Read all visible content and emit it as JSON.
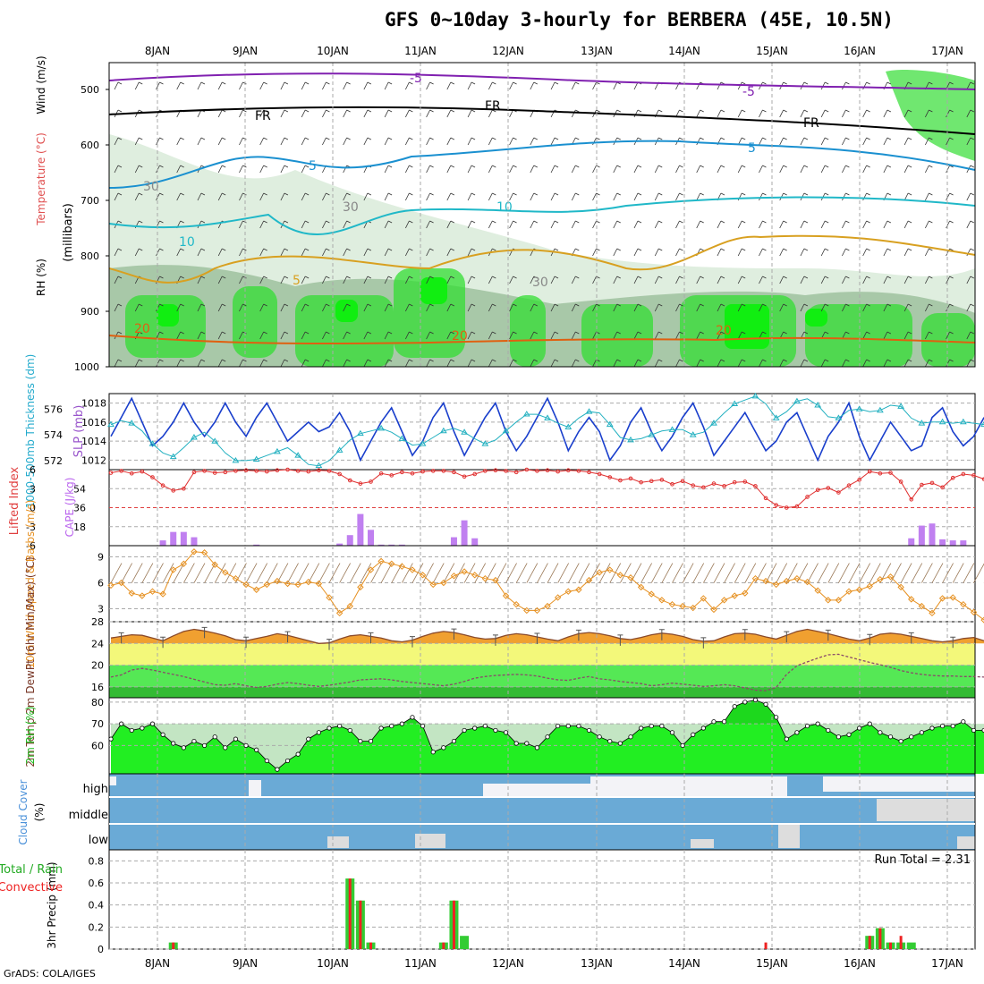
{
  "title": "GFS 0~10day 3-hourly for BERBERA (45E, 10.5N)",
  "credit": "GrADS: COLA/IGES",
  "dates": [
    "8JAN",
    "9JAN",
    "10JAN",
    "11JAN",
    "12JAN",
    "13JAN",
    "14JAN",
    "15JAN",
    "16JAN",
    "17JAN"
  ],
  "colors": {
    "rh_green": "#33dd33",
    "rh_light": "#dfeedf",
    "rh_mid": "#a8c8a8",
    "slp_line": "#1a3fcc",
    "thickness_line": "#22b0c0",
    "cape_bar": "#c080f0",
    "lifted_line": "#e03030",
    "wind_speed": "#e69020",
    "temp_fill": "#f0a030",
    "temp_line": "#8a4a2a",
    "dewpt_band_yellow": "#f3f87a",
    "dewpt_green": "#55e855",
    "cloud_blue": "#6aaad6",
    "precip_green": "#33cc33",
    "precip_red": "#ee2222"
  },
  "chart_data": [
    {
      "type": "contour",
      "panel": "sounding",
      "ylabel_parts": [
        "RH (%)",
        "Temperature (°C)",
        "Wind (m/s)"
      ],
      "yunit": "(millibars)",
      "yticks": [
        500,
        600,
        700,
        800,
        900,
        1000
      ],
      "contour_labels": [
        "-5",
        "-5",
        "FR",
        "FR",
        "FR",
        "5",
        "5",
        "10",
        "10",
        "5",
        "20",
        "20",
        "20",
        "30",
        "30",
        "30"
      ]
    },
    {
      "type": "line",
      "panel": "slp_thickness",
      "ylabel_left": "1000-500mb Thickness (dm)",
      "ylabel_right": "SLP (mb)",
      "yticks_left": [
        572,
        574,
        576
      ],
      "yticks_right": [
        1012,
        1014,
        1016,
        1018
      ],
      "series": [
        {
          "name": "SLP (mb)",
          "values": [
            1014.5,
            1016.5,
            1018.5,
            1016,
            1013.5,
            1014.5,
            1016,
            1018,
            1016,
            1014.5,
            1016,
            1018,
            1016,
            1014.5,
            1016.5,
            1018,
            1016,
            1014,
            1015,
            1016,
            1015,
            1015.5,
            1017,
            1015,
            1012,
            1014,
            1016,
            1017.5,
            1015,
            1012.5,
            1014,
            1016.5,
            1018,
            1015,
            1012.5,
            1014.5,
            1016.5,
            1018,
            1015,
            1013,
            1014.5,
            1016.5,
            1018.5,
            1016,
            1013,
            1015,
            1016.5,
            1015,
            1012,
            1013.5,
            1016,
            1017.5,
            1015,
            1013,
            1014.5,
            1016.5,
            1018,
            1015.5,
            1012.5,
            1014,
            1015.5,
            1017,
            1015,
            1013,
            1014,
            1016,
            1017,
            1014.5,
            1012,
            1014.5,
            1016,
            1018,
            1014.5,
            1012,
            1014,
            1016,
            1014.5,
            1013,
            1013.5,
            1016.5,
            1017.5,
            1015,
            1013.5,
            1014.5,
            1016.5
          ]
        },
        {
          "name": "1000-500mb Thickness (dm)",
          "values": [
            574.8,
            575.1,
            574.9,
            574.3,
            573.3,
            572.6,
            572.3,
            573,
            573.8,
            574.2,
            573.5,
            572.6,
            572,
            572,
            572.1,
            572.4,
            572.7,
            573,
            572.4,
            571.7,
            571.6,
            572,
            572.8,
            573.6,
            574.1,
            574.3,
            574.5,
            574.2,
            573.7,
            573.2,
            573.3,
            573.8,
            574.3,
            574.5,
            574.2,
            573.7,
            573.3,
            573.6,
            574.3,
            575,
            575.6,
            575.6,
            575.3,
            574.9,
            574.6,
            575.3,
            575.8,
            575.7,
            574.8,
            573.8,
            573.6,
            573.7,
            574,
            574.3,
            574.4,
            574.4,
            574,
            574.2,
            574.9,
            575.7,
            576.4,
            576.7,
            577,
            576.4,
            575.3,
            575.8,
            576.6,
            576.8,
            576.3,
            575.4,
            575.3,
            575.9,
            576,
            575.8,
            575.9,
            576.3,
            576.2,
            575.3,
            574.9,
            575,
            575,
            574.9,
            575,
            574.9,
            574.8
          ]
        }
      ]
    },
    {
      "type": "bar+line",
      "panel": "cape_lifted_index",
      "ylabel_left": "Lifted Index",
      "ylabel_right": "CAPE (J/kg)",
      "yticks_left": [
        "6",
        "3",
        "0",
        "-3",
        "-6"
      ],
      "yticks_right": [
        18,
        36,
        54
      ],
      "series": [
        {
          "name": "CAPE (J/kg)",
          "values": [
            0,
            0,
            0,
            0,
            0,
            5,
            13,
            13,
            8,
            0,
            0,
            0,
            0,
            0,
            1,
            0,
            0,
            0,
            0,
            0,
            0,
            0,
            2,
            10,
            30,
            15,
            1,
            1,
            1,
            0,
            0,
            0,
            0,
            8,
            24,
            7,
            0,
            0,
            0,
            0,
            0,
            0,
            0,
            0,
            0,
            0,
            0,
            0,
            0,
            0,
            0,
            0,
            0,
            0,
            0,
            0,
            0,
            0,
            0,
            0,
            0,
            0,
            0,
            0,
            0,
            0,
            0,
            0,
            0,
            0,
            0,
            0,
            0,
            0,
            0,
            0,
            0,
            7,
            19,
            21,
            6,
            5,
            5,
            0,
            0
          ]
        },
        {
          "name": "Lifted Index",
          "values": [
            5.5,
            5.8,
            5.4,
            5.7,
            4.8,
            3.5,
            2.7,
            3,
            5.6,
            5.8,
            5.5,
            5.6,
            5.8,
            5.9,
            5.8,
            5.7,
            5.9,
            6,
            5.8,
            5.7,
            5.9,
            5.8,
            5.3,
            4.3,
            3.8,
            4.1,
            5.4,
            5.1,
            5.6,
            5.4,
            5.7,
            5.8,
            5.8,
            5.6,
            4.9,
            5.3,
            5.8,
            5.9,
            5.8,
            5.6,
            6,
            5.8,
            5.9,
            5.7,
            5.9,
            5.8,
            5.6,
            5.3,
            4.8,
            4.3,
            4.6,
            4,
            4.2,
            4.4,
            3.7,
            4.2,
            3.5,
            3.2,
            3.8,
            3.4,
            4,
            4.1,
            3.4,
            1.5,
            0.4,
            0,
            0.2,
            1.7,
            2.8,
            3.1,
            2.4,
            3.5,
            4.4,
            5.7,
            5.4,
            5.5,
            4.1,
            1.3,
            3.6,
            3.9,
            3.2,
            4.7,
            5.3,
            5.1,
            4.5
          ]
        }
      ]
    },
    {
      "type": "line",
      "panel": "wind10m",
      "ylabel": "10m Wind Speed & Barbs (m/s)",
      "yticks": [
        3,
        6,
        9
      ],
      "series": [
        {
          "name": "10m Wind Speed",
          "values": [
            5.7,
            6,
            4.8,
            4.5,
            5,
            4.7,
            7.5,
            8.2,
            9.6,
            9.5,
            8.1,
            7.2,
            6.5,
            5.8,
            5.2,
            5.8,
            6.2,
            5.9,
            5.8,
            6.1,
            5.9,
            4.3,
            2.5,
            3.3,
            5.5,
            7.5,
            8.5,
            8.2,
            7.9,
            7.5,
            6.9,
            5.8,
            6,
            6.8,
            7.3,
            6.9,
            6.5,
            6.3,
            4.5,
            3.5,
            2.8,
            2.8,
            3.3,
            4.3,
            5,
            5.2,
            6.3,
            7.2,
            7.5,
            6.9,
            6.6,
            5.5,
            4.7,
            4,
            3.5,
            3.3,
            3.1,
            4.2,
            2.9,
            4,
            4.5,
            4.8,
            6.5,
            6.2,
            5.8,
            6.2,
            6.5,
            6.1,
            5.1,
            4,
            4,
            5,
            5.2,
            5.6,
            6.4,
            6.7,
            5.5,
            4.1,
            3.3,
            2.5,
            4.2,
            4.3,
            3.5,
            2.6,
            1.7
          ]
        }
      ]
    },
    {
      "type": "area",
      "panel": "temp_dewpt",
      "ylabel": "2m Temp 2m DewPt (6hr Min/Max) (°C)",
      "yticks": [
        16,
        20,
        24,
        28
      ],
      "series": [
        {
          "name": "2m Temp",
          "values": [
            25,
            25.3,
            25.6,
            25.5,
            25,
            24.5,
            25.4,
            26.2,
            26.6,
            26.3,
            25.9,
            25.4,
            24.7,
            24.5,
            24.9,
            25.3,
            25.8,
            25.5,
            25,
            24.5,
            24,
            24.1,
            24.8,
            25.4,
            25.6,
            25.3,
            25,
            24.5,
            24.3,
            24.6,
            25.3,
            25.9,
            26.2,
            26,
            25.6,
            25.1,
            24.8,
            24.9,
            25.5,
            25.8,
            25.6,
            25.2,
            24.8,
            24.5,
            25.2,
            25.8,
            26,
            25.8,
            25.4,
            24.9,
            24.7,
            25.1,
            25.6,
            25.9,
            25.7,
            25.3,
            24.7,
            24.4,
            24.5,
            25.2,
            25.8,
            25.9,
            25.7,
            25.2,
            24.8,
            25.5,
            26.2,
            26.6,
            26.2,
            25.8,
            25.3,
            24.8,
            24.5,
            25,
            25.7,
            25.9,
            25.7,
            25.3,
            24.9,
            24.5,
            24.3,
            24.5,
            24.9,
            25.1,
            24.5
          ]
        },
        {
          "name": "2m DewPt",
          "values": [
            17.8,
            18.2,
            19.1,
            19.4,
            19.1,
            18.7,
            18.3,
            17.9,
            17.4,
            16.9,
            16.4,
            16.3,
            16.6,
            16.2,
            15.9,
            16.1,
            16.5,
            16.8,
            16.6,
            16.3,
            16.1,
            16.3,
            16.6,
            16.9,
            17.3,
            17.4,
            17.5,
            17.3,
            17,
            16.8,
            16.6,
            16.4,
            16.2,
            16.5,
            17,
            17.6,
            17.9,
            18.1,
            18.2,
            18.3,
            18.2,
            18,
            17.6,
            17.3,
            17.2,
            17.6,
            17.9,
            17.5,
            17.3,
            17,
            16.8,
            16.6,
            16.2,
            16.4,
            16.7,
            16.5,
            16.3,
            16.1,
            16.2,
            16.4,
            16.2,
            15.8,
            15.4,
            15.3,
            15.9,
            18.3,
            19.9,
            20.6,
            21.3,
            21.9,
            22,
            21.5,
            21,
            20.5,
            20.1,
            19.6,
            19,
            18.6,
            18.3,
            18.1,
            18,
            18,
            17.9,
            17.9,
            17.8
          ]
        }
      ]
    },
    {
      "type": "area",
      "panel": "rh2m",
      "ylabel": "2m RH (%)",
      "yticks": [
        60,
        70,
        80
      ],
      "series": [
        {
          "name": "2m RH",
          "values": [
            63,
            70,
            67,
            68,
            70,
            65,
            61,
            59,
            62,
            60,
            64,
            59,
            63,
            60,
            58,
            53,
            49,
            53,
            56,
            63,
            66,
            68,
            69,
            67,
            62,
            62,
            68,
            69,
            70,
            73,
            69,
            57,
            59,
            62,
            67,
            68,
            69,
            67,
            66,
            61,
            61,
            59,
            64,
            69,
            69,
            69,
            67,
            64,
            62,
            61,
            64,
            68,
            69,
            69,
            66,
            60,
            65,
            68,
            71,
            71,
            78,
            80,
            81,
            79,
            73,
            63,
            66,
            69,
            70,
            67,
            64,
            65,
            68,
            70,
            66,
            64,
            62,
            64,
            66,
            68,
            69,
            69,
            71,
            67,
            67
          ]
        }
      ]
    },
    {
      "type": "bar",
      "panel": "cloud_cover",
      "ylabel": "Cloud Cover (%)",
      "layers": [
        "high",
        "middle",
        "low"
      ]
    },
    {
      "type": "bar",
      "panel": "precip",
      "ylabel": "3hr Precip (mm)",
      "legend": [
        "Total / Rain",
        "Convective"
      ],
      "annotation": "Run Total = 2.31",
      "yticks": [
        0,
        0.2,
        0.4,
        0.6,
        0.8
      ],
      "ylim": [
        0,
        0.9
      ],
      "series": [
        {
          "name": "Total / Rain",
          "values": [
            0,
            0,
            0,
            0,
            0,
            0,
            0.06,
            0,
            0,
            0,
            0,
            0,
            0,
            0,
            0,
            0,
            0,
            0,
            0,
            0,
            0,
            0,
            0,
            0.64,
            0.44,
            0.06,
            0,
            0,
            0,
            0,
            0,
            0,
            0.06,
            0.44,
            0.12,
            0,
            0,
            0,
            0,
            0,
            0,
            0,
            0,
            0,
            0,
            0,
            0,
            0,
            0,
            0,
            0,
            0,
            0,
            0,
            0,
            0,
            0,
            0,
            0,
            0,
            0,
            0,
            0,
            0,
            0,
            0,
            0,
            0,
            0,
            0,
            0,
            0,
            0,
            0.12,
            0.19,
            0.06,
            0.06,
            0.06,
            0,
            0,
            0,
            0,
            0,
            0,
            0
          ]
        },
        {
          "name": "Convective",
          "values": [
            0,
            0,
            0,
            0,
            0,
            0,
            0.06,
            0,
            0,
            0,
            0,
            0,
            0,
            0,
            0,
            0,
            0,
            0,
            0,
            0,
            0,
            0,
            0,
            0.64,
            0.44,
            0.06,
            0,
            0,
            0,
            0,
            0,
            0,
            0.06,
            0.44,
            0,
            0,
            0,
            0,
            0,
            0,
            0,
            0,
            0,
            0,
            0,
            0,
            0,
            0,
            0,
            0,
            0,
            0,
            0,
            0,
            0,
            0,
            0,
            0,
            0,
            0,
            0,
            0,
            0,
            0.06,
            0,
            0,
            0,
            0,
            0,
            0,
            0,
            0,
            0,
            0.12,
            0.19,
            0.06,
            0.12,
            0,
            0,
            0,
            0,
            0,
            0,
            0,
            0
          ]
        }
      ]
    }
  ]
}
